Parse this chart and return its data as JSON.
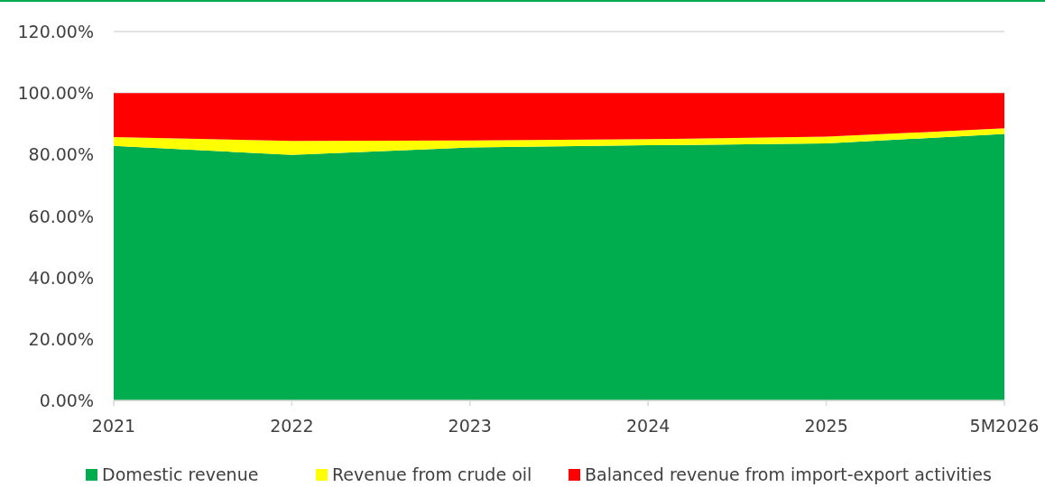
{
  "chart_data": {
    "type": "area",
    "stacked": true,
    "categories": [
      "2021",
      "2022",
      "2023",
      "2024",
      "2025",
      "5M2026"
    ],
    "series": [
      {
        "name": "Domestic revenue",
        "color": "#00ad4e",
        "values": [
          82.8,
          79.9,
          82.3,
          83.0,
          83.6,
          86.7
        ]
      },
      {
        "name": "Revenue from crude oil",
        "color": "#ffff00",
        "values": [
          2.9,
          4.5,
          2.3,
          2.0,
          2.2,
          1.8
        ]
      },
      {
        "name": "Balanced revenue from import-export activities",
        "color": "#ff0000",
        "values": [
          14.3,
          15.6,
          15.4,
          15.0,
          14.2,
          11.5
        ]
      }
    ],
    "ylim": [
      0,
      120
    ],
    "yticks": [
      {
        "value": 0,
        "label": "0.00%"
      },
      {
        "value": 20,
        "label": "20.00%"
      },
      {
        "value": 40,
        "label": "40.00%"
      },
      {
        "value": 60,
        "label": "60.00%"
      },
      {
        "value": 80,
        "label": "80.00%"
      },
      {
        "value": 100,
        "label": "100.00%"
      },
      {
        "value": 120,
        "label": "120.00%"
      }
    ],
    "grid": "y",
    "legend": "bottom"
  }
}
